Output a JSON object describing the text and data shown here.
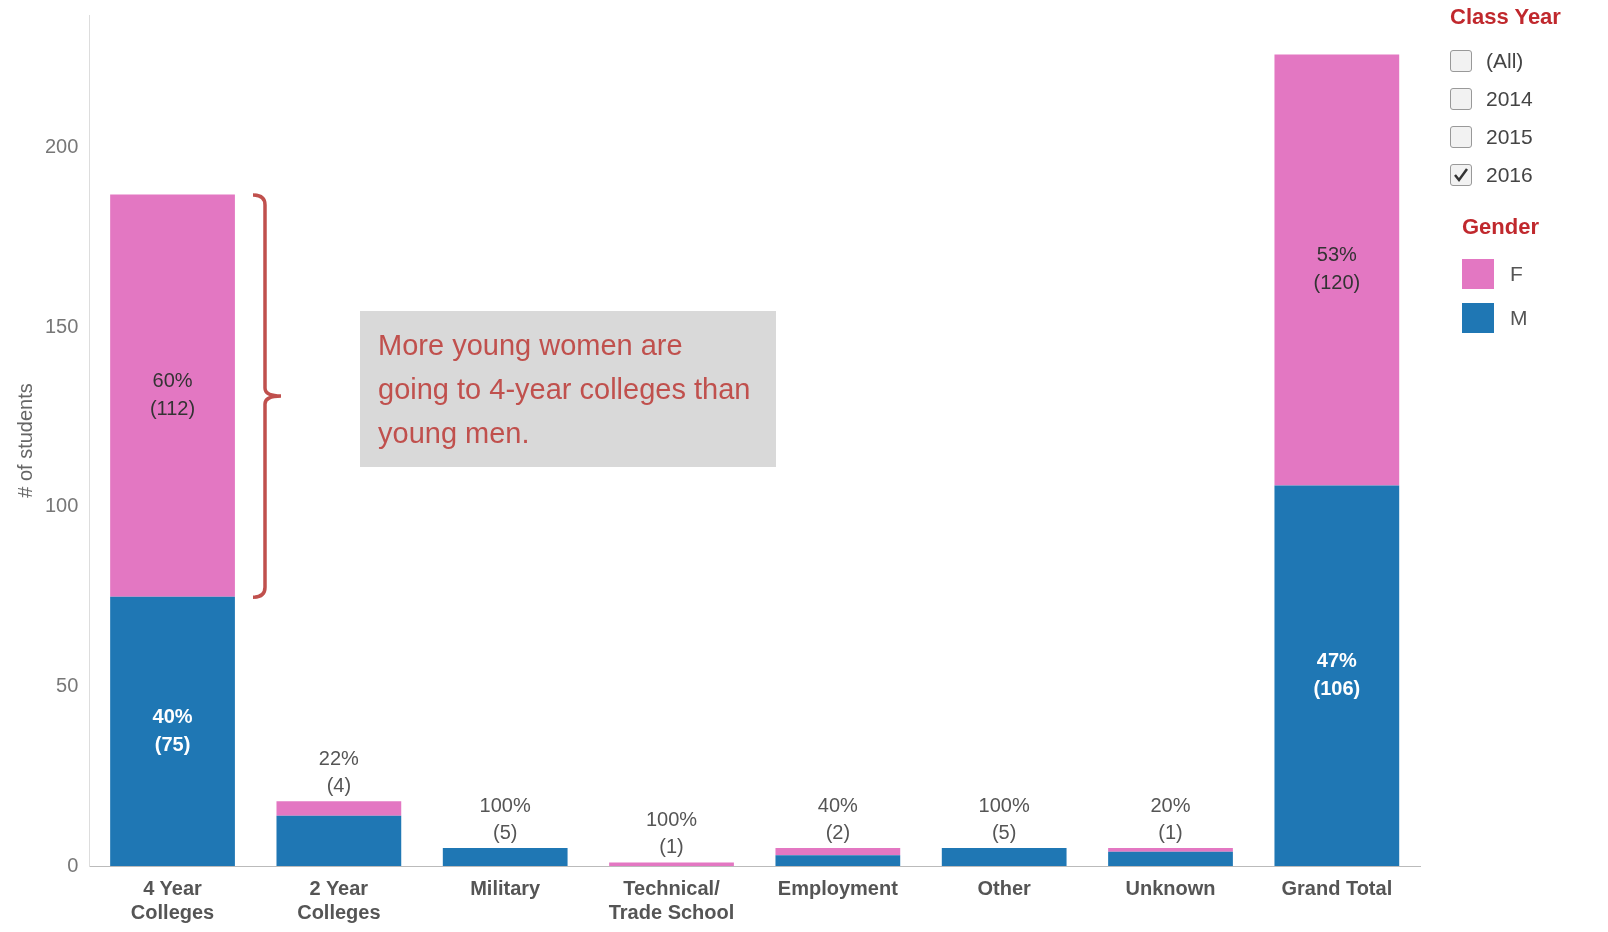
{
  "chart_data": {
    "type": "bar",
    "stacked": true,
    "ylabel": "# of students",
    "legend_title": "Gender",
    "legend": "top right",
    "categories": [
      "4 Year Colleges",
      "2 Year Colleges",
      "Military",
      "Technical/ Trade School",
      "Employment",
      "Other",
      "Unknown",
      "Grand Total"
    ],
    "series": [
      {
        "name": "M",
        "color": "#1f77b4",
        "values": [
          75,
          14,
          5,
          0,
          3,
          5,
          4,
          106
        ],
        "value_labels": [
          "40% (75)",
          null,
          "100% (5)",
          null,
          null,
          "100% (5)",
          null,
          "47% (106)"
        ]
      },
      {
        "name": "F",
        "color": "#e377c2",
        "values": [
          112,
          4,
          0,
          1,
          2,
          0,
          1,
          120
        ],
        "value_labels": [
          "60% (112)",
          "22% (4)",
          null,
          "100% (1)",
          "40% (2)",
          null,
          "20% (1)",
          "53% (120)"
        ]
      }
    ],
    "ylim": [
      0,
      237
    ],
    "yticks": [
      0,
      50,
      100,
      150,
      200
    ],
    "annotations": [
      "More young women are going to 4-year colleges than  young men.",
      "Class Year",
      "(All)",
      "2014",
      "2015",
      "2016"
    ]
  }
}
